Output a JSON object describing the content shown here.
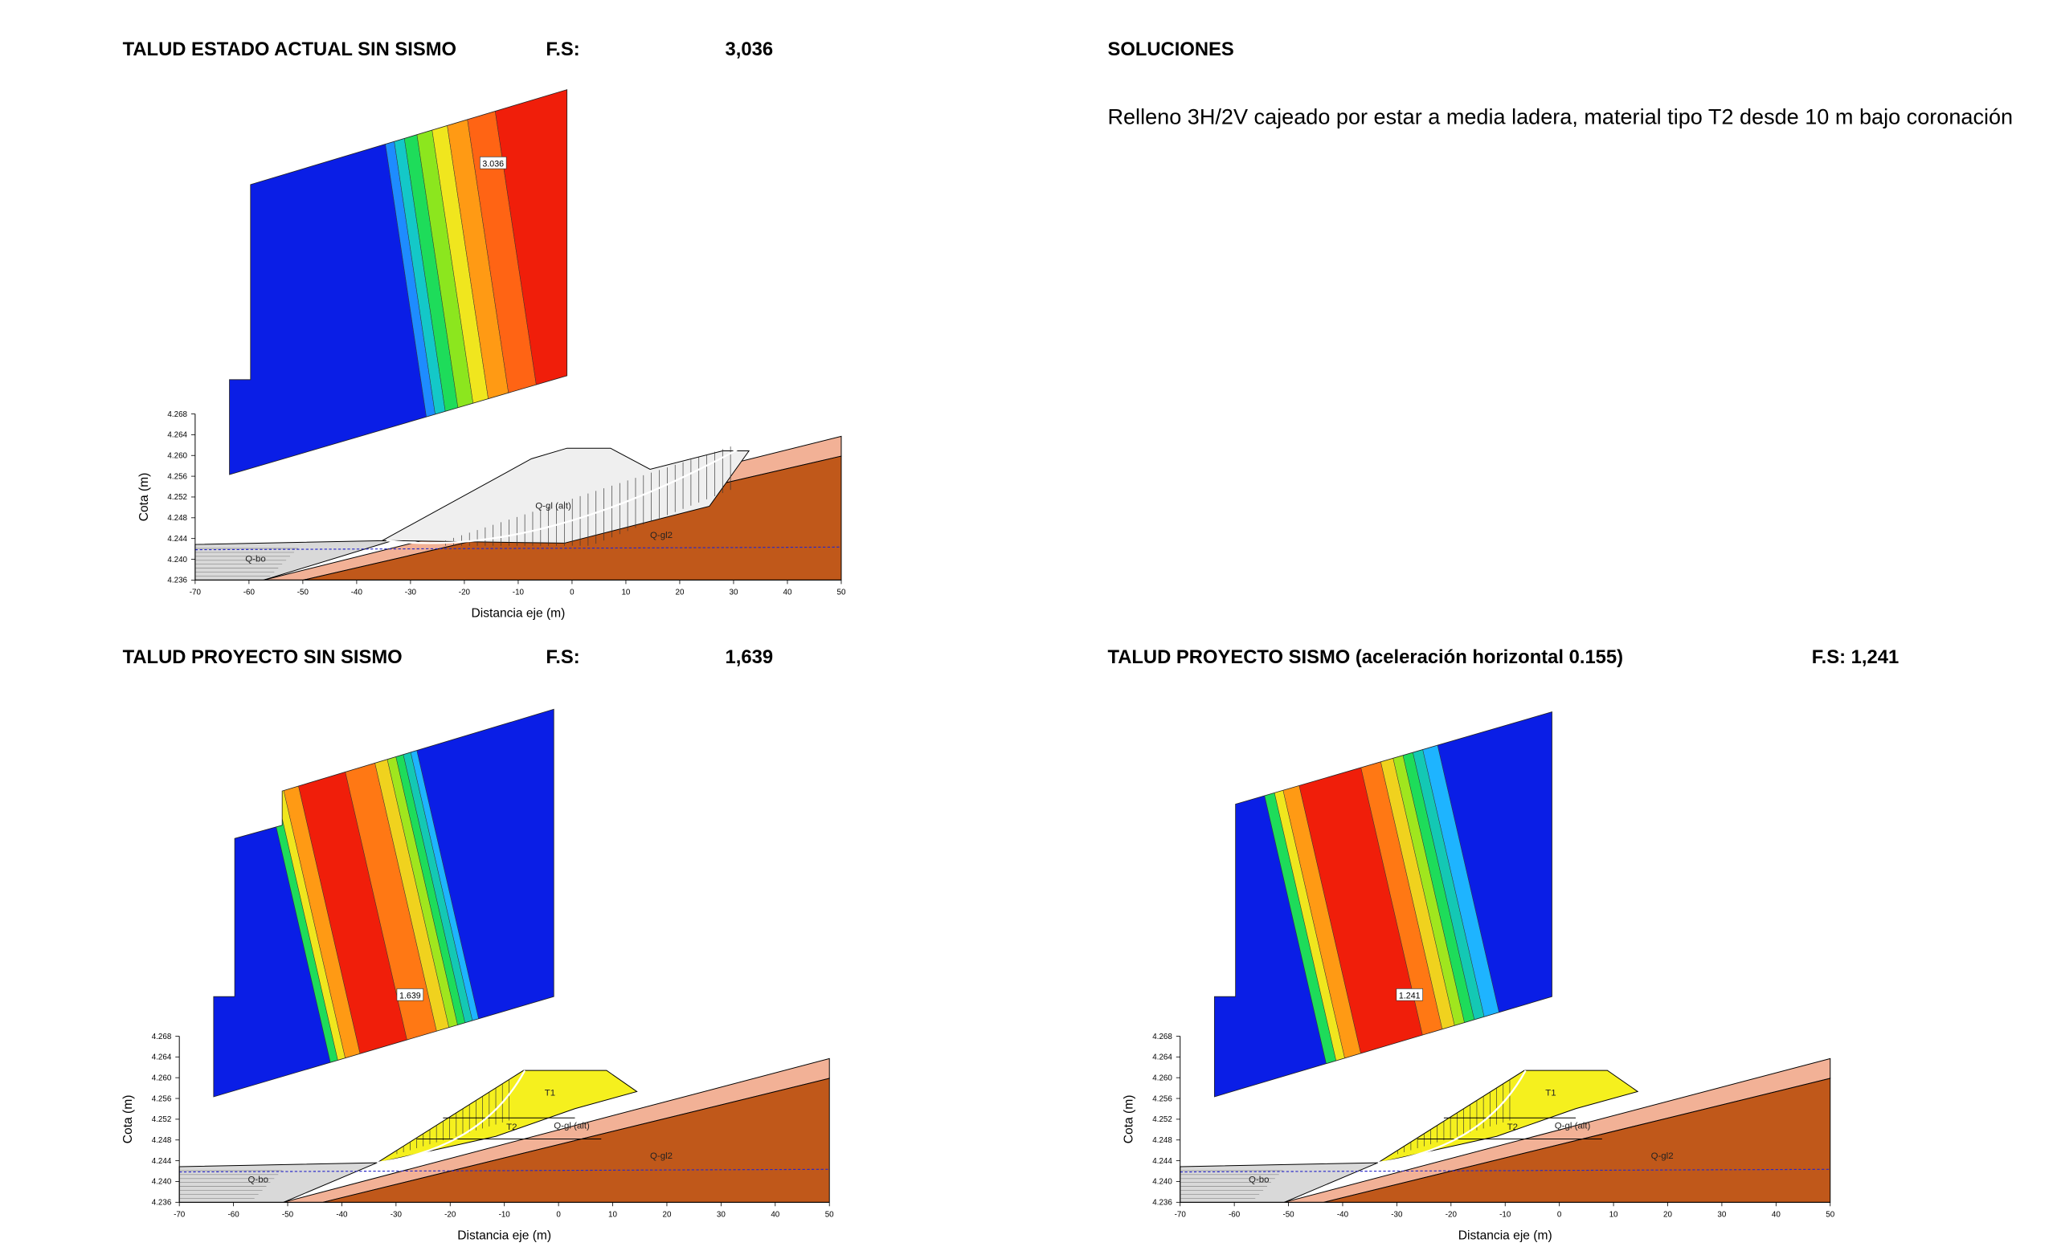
{
  "sections": [
    {
      "title": "TALUD ESTADO ACTUAL SIN SISMO",
      "fs_label": "F.S:",
      "fs_value": "3,036"
    },
    {
      "title": "TALUD PROYECTO SIN SISMO",
      "fs_label": "F.S:",
      "fs_value": "1,639"
    },
    {
      "title": "TALUD PROYECTO SISMO (aceleración horizontal 0.155)",
      "fs_value": "F.S: 1,241"
    }
  ],
  "soluciones": {
    "title": "SOLUCIONES",
    "text": "Relleno 3H/2V cajeado por estar a media ladera, material tipo T2 desde 10 m bajo coronación"
  },
  "figures": [
    {
      "tag": "3.036",
      "labels": [
        "Q-gl (alt)",
        "Q-gl2",
        "Q-bo"
      ],
      "y_axis_label": "Cota (m)",
      "x_axis_label": "Distancia eje (m)",
      "yticks": [
        "4.268",
        "4.264",
        "4.260",
        "4.256",
        "4.252",
        "4.248",
        "4.244",
        "4.240",
        "4.236"
      ],
      "xticks": [
        -70,
        -60,
        -50,
        -40,
        -30,
        -20,
        -10,
        0,
        10,
        20,
        30,
        40,
        50
      ]
    },
    {
      "tag": "1.639",
      "labels": [
        "T1",
        "T2",
        "Q-gl (alt)",
        "Q-gl2",
        "Q-bo"
      ],
      "y_axis_label": "Cota (m)",
      "x_axis_label": "Distancia eje (m)",
      "yticks": [
        "4.268",
        "4.264",
        "4.260",
        "4.256",
        "4.252",
        "4.248",
        "4.244",
        "4.240",
        "4.236"
      ],
      "xticks": [
        -70,
        -60,
        -50,
        -40,
        -30,
        -20,
        -10,
        0,
        10,
        20,
        30,
        40,
        50
      ]
    },
    {
      "tag": "1.241",
      "labels": [
        "T1",
        "T2",
        "Q-gl (alt)",
        "Q-gl2",
        "Q-bo"
      ],
      "y_axis_label": "Cota (m)",
      "x_axis_label": "Distancia eje (m)",
      "yticks": [
        "4.268",
        "4.264",
        "4.260",
        "4.256",
        "4.252",
        "4.248",
        "4.244",
        "4.240",
        "4.236"
      ],
      "xticks": [
        -70,
        -60,
        -50,
        -40,
        -30,
        -20,
        -10,
        0,
        10,
        20,
        30,
        40,
        50
      ]
    }
  ]
}
